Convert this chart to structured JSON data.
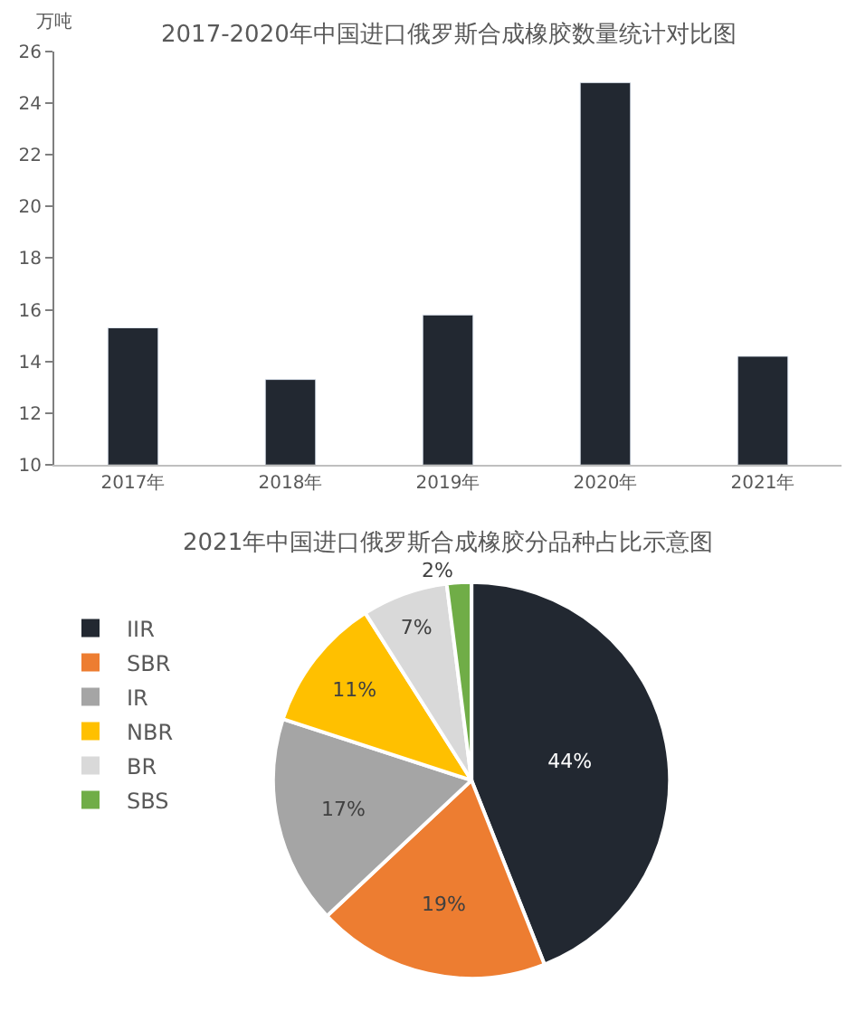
{
  "chart_data": [
    {
      "type": "bar",
      "title": "2017-2020年中国进口俄罗斯合成橡胶数量统计对比图",
      "ylabel": "万吨",
      "categories": [
        "2017年",
        "2018年",
        "2019年",
        "2020年",
        "2021年"
      ],
      "values": [
        15.3,
        13.3,
        15.8,
        24.8,
        14.2
      ],
      "color": "#222831",
      "ylim": [
        10,
        26
      ],
      "yticks": [
        10,
        12,
        14,
        16,
        18,
        20,
        22,
        24,
        26
      ]
    },
    {
      "type": "pie",
      "title": "2021年中国进口俄罗斯合成橡胶分品种占比示意图",
      "categories": [
        "IIR",
        "SBR",
        "IR",
        "NBR",
        "BR",
        "SBS"
      ],
      "values": [
        44,
        19,
        17,
        11,
        7,
        2
      ],
      "value_labels": [
        "44%",
        "19%",
        "17%",
        "11%",
        "7%",
        "2%"
      ],
      "colors": [
        "#222831",
        "#ed7d31",
        "#a5a5a5",
        "#ffc000",
        "#d9d9d9",
        "#70ad47"
      ],
      "legend": "left"
    }
  ]
}
